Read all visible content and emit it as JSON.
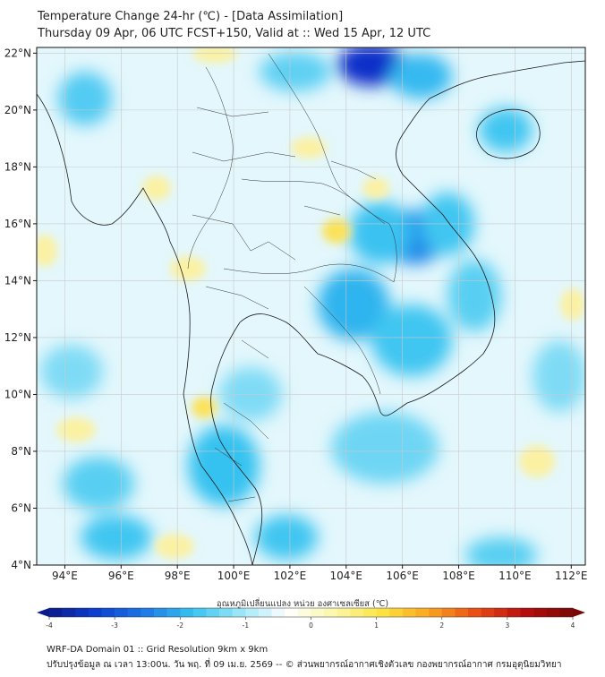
{
  "header": {
    "title_line1": "Temperature Change 24-hr (℃) - [Data Assimilation]",
    "title_line2": "Thursday 09 Apr, 06 UTC FCST+150, Valid at :: Wed 15 Apr, 12 UTC"
  },
  "map": {
    "lat_labels": [
      "22°N",
      "20°N",
      "18°N",
      "16°N",
      "14°N",
      "12°N",
      "10°N",
      "8°N",
      "6°N",
      "4°N"
    ],
    "lon_labels": [
      "94°E",
      "96°E",
      "98°E",
      "100°E",
      "102°E",
      "104°E",
      "106°E",
      "108°E",
      "110°E",
      "112°E"
    ],
    "lat_values": [
      22,
      20,
      18,
      16,
      14,
      12,
      10,
      8,
      6,
      4
    ],
    "lon_values": [
      94,
      96,
      98,
      100,
      102,
      104,
      106,
      108,
      110,
      112
    ],
    "lon_range": [
      93,
      112.5
    ],
    "lat_range": [
      4,
      22.2
    ]
  },
  "colorbar": {
    "title": "อุณหภูมิเปลี่ยนแปลง หน่วย องศาเซลเซียส (℃)",
    "ticks": [
      "-4",
      "-3",
      "-2",
      "-1",
      "0",
      "1",
      "2",
      "3",
      "4"
    ],
    "tick_values": [
      -4,
      -3,
      -2,
      -1,
      0,
      1,
      2,
      3,
      4
    ],
    "colors": [
      "#0a1a8c",
      "#0d3fd0",
      "#1f78e6",
      "#35c2f0",
      "#9ae6f7",
      "#ffffff",
      "#fbf7a8",
      "#fde240",
      "#f9a320",
      "#e84a14",
      "#b50d0d",
      "#7a0606"
    ]
  },
  "footer": {
    "line1": "WRF-DA Domain 01 :: Grid Resolution 9km x 9km",
    "line2": "ปรับปรุงข้อมูล ณ เวลา 13:00น. วัน พฤ. ที่ 09 เม.ย. 2569 -- © ส่วนพยากรณ์อากาศเชิงตัวเลข กองพยากรณ์อากาศ กรมอุตุนิยมวิทยา"
  }
}
